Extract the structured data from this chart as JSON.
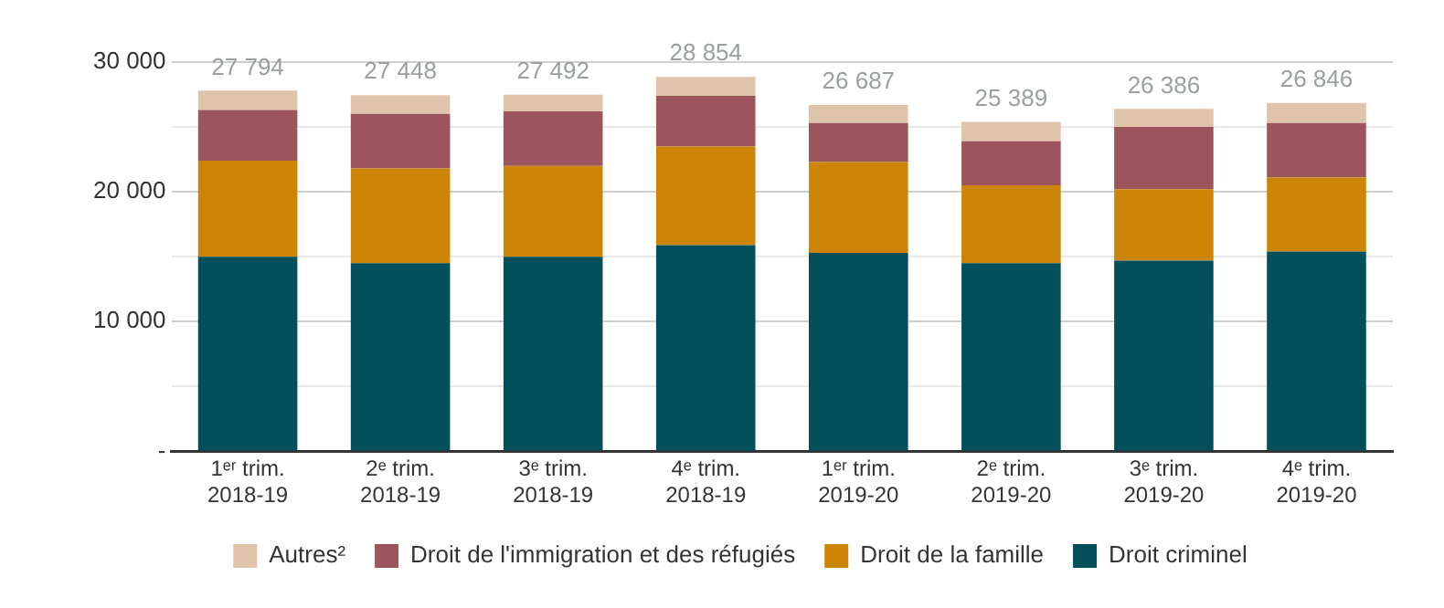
{
  "chart_data": {
    "type": "bar",
    "stacked": true,
    "categories": [
      "1ᵉʳ trim. 2018-19",
      "2ᵉ trim. 2018-19",
      "3ᵉ trim. 2018-19",
      "4ᵉ trim. 2018-19",
      "1ᵉʳ trim. 2019-20",
      "2ᵉ trim. 2019-20",
      "3ᵉ trim. 2019-20",
      "4ᵉ trim. 2019-20"
    ],
    "series": [
      {
        "name": "Droit criminel",
        "color": "#03505a",
        "values": [
          15000,
          14500,
          15000,
          15900,
          15300,
          14500,
          14700,
          15400
        ]
      },
      {
        "name": "Droit de la famille",
        "color": "#cc8506",
        "values": [
          7400,
          7300,
          7000,
          7600,
          7000,
          6000,
          5500,
          5700
        ]
      },
      {
        "name": "Droit de l'immigration et des réfugiés",
        "color": "#9c555c",
        "values": [
          3900,
          4200,
          4200,
          3900,
          3000,
          3400,
          4800,
          4200
        ]
      },
      {
        "name": "Autres²",
        "color": "#dfc3ab",
        "values": [
          1494,
          1448,
          1292,
          1454,
          1387,
          1489,
          1386,
          1546
        ]
      }
    ],
    "totals": [
      "27 794",
      "27 448",
      "27 492",
      "28 854",
      "26 687",
      "25 389",
      "26 386",
      "26 846"
    ],
    "ylim": [
      0,
      30000
    ],
    "yticks": [
      {
        "value": 0,
        "label": "-"
      },
      {
        "value": 5000,
        "label": null
      },
      {
        "value": 10000,
        "label": "10 000"
      },
      {
        "value": 15000,
        "label": null
      },
      {
        "value": 20000,
        "label": "20 000"
      },
      {
        "value": 25000,
        "label": null
      },
      {
        "value": 30000,
        "label": "30 000"
      }
    ],
    "grid": "y",
    "legend": "bottom"
  }
}
